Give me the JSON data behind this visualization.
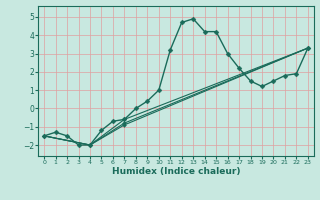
{
  "xlabel": "Humidex (Indice chaleur)",
  "xlim": [
    -0.5,
    23.5
  ],
  "ylim": [
    -2.6,
    5.6
  ],
  "xticks": [
    0,
    1,
    2,
    3,
    4,
    5,
    6,
    7,
    8,
    9,
    10,
    11,
    12,
    13,
    14,
    15,
    16,
    17,
    18,
    19,
    20,
    21,
    22,
    23
  ],
  "yticks": [
    -2,
    -1,
    0,
    1,
    2,
    3,
    4,
    5
  ],
  "bg_color": "#c8e8e0",
  "grid_color": "#e8e8e8",
  "line_color": "#1a6b5a",
  "lines": [
    {
      "x": [
        0,
        1,
        2,
        3,
        4,
        5,
        6,
        7,
        8,
        9,
        10,
        11,
        12,
        13,
        14,
        15,
        16,
        17,
        18,
        19,
        20,
        21,
        22,
        23
      ],
      "y": [
        -1.5,
        -1.3,
        -1.5,
        -2.0,
        -2.0,
        -1.2,
        -0.7,
        -0.6,
        0.0,
        0.4,
        1.0,
        3.2,
        4.7,
        4.9,
        4.2,
        4.2,
        3.0,
        2.2,
        1.5,
        1.2,
        1.5,
        1.8,
        1.9,
        3.3
      ]
    },
    {
      "x": [
        0,
        4,
        7,
        23
      ],
      "y": [
        -1.5,
        -2.0,
        -0.6,
        3.3
      ]
    },
    {
      "x": [
        0,
        4,
        7,
        23
      ],
      "y": [
        -1.5,
        -2.0,
        -0.8,
        3.3
      ]
    },
    {
      "x": [
        0,
        4,
        7,
        23
      ],
      "y": [
        -1.5,
        -2.0,
        -0.9,
        3.3
      ]
    }
  ],
  "figsize": [
    3.2,
    2.0
  ],
  "dpi": 100
}
